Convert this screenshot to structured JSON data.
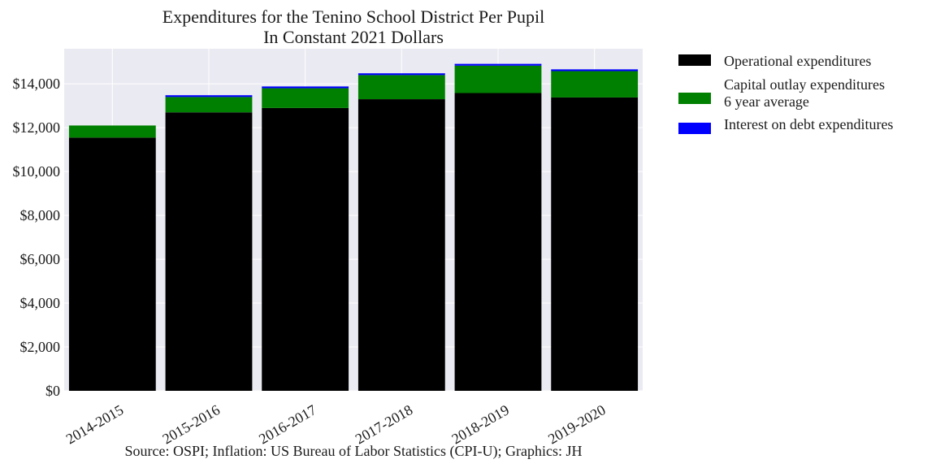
{
  "chart_data": {
    "type": "bar",
    "stacked": true,
    "title": [
      "Expenditures for the Tenino School District Per Pupil",
      "In Constant 2021 Dollars"
    ],
    "categories": [
      "2014-2015",
      "2015-2016",
      "2016-2017",
      "2017-2018",
      "2018-2019",
      "2019-2020"
    ],
    "series": [
      {
        "name": "Operational expenditures",
        "color": "#000000",
        "values": [
          11550,
          12700,
          12900,
          13300,
          13580,
          13380
        ]
      },
      {
        "name": "Capital outlay expenditures\n6 year average",
        "color": "#008000",
        "values": [
          550,
          700,
          900,
          1100,
          1250,
          1200
        ]
      },
      {
        "name": "Interest on debt expenditures",
        "color": "#0000ff",
        "values": [
          0,
          80,
          80,
          80,
          80,
          80
        ]
      }
    ],
    "ylim": [
      0,
      15600
    ],
    "yticks": [
      0,
      2000,
      4000,
      6000,
      8000,
      10000,
      12000,
      14000
    ],
    "ytick_labels": [
      "$0",
      "$2,000",
      "$4,000",
      "$6,000",
      "$8,000",
      "$10,000",
      "$12,000",
      "$14,000"
    ],
    "grid": true,
    "plot_background": "#eaeaf2",
    "legend_position": "outside-right",
    "source": "Source: OSPI; Inflation: US Bureau of Labor Statistics (CPI-U); Graphics: JH"
  }
}
